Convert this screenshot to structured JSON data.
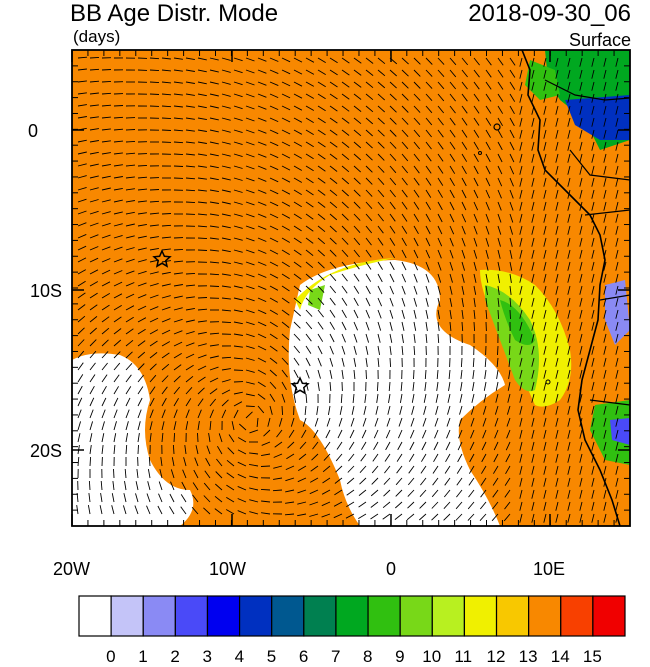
{
  "header": {
    "title": "BB Age Distr. Mode",
    "units": "(days)",
    "datetime": "2018-09-30_06",
    "level": "Surface"
  },
  "axes": {
    "x_ticks": [
      "20W",
      "10W",
      "0",
      "10E"
    ],
    "y_ticks": [
      "0",
      "10S",
      "20S"
    ]
  },
  "colorbar": {
    "labels": [
      "0",
      "1",
      "2",
      "3",
      "4",
      "5",
      "6",
      "7",
      "8",
      "9",
      "10",
      "11",
      "12",
      "13",
      "14",
      "15"
    ],
    "colors": [
      "#ffffff",
      "#c4c4f8",
      "#8a8af4",
      "#4a4af8",
      "#0000f0",
      "#0030c0",
      "#005890",
      "#008050",
      "#00a820",
      "#30c010",
      "#78d818",
      "#b8f020",
      "#f0f000",
      "#f8c800",
      "#f88800",
      "#f84000",
      "#f00000"
    ]
  },
  "map": {
    "region": "Southeast Atlantic / West Africa coast",
    "lon_range": [
      -20,
      15
    ],
    "lat_range": [
      -25,
      5
    ],
    "background_color": "#f88800",
    "markers": [
      {
        "name": "star",
        "lon": -14.3,
        "lat": -8
      },
      {
        "name": "star",
        "lon": -5.7,
        "lat": -16
      }
    ]
  }
}
